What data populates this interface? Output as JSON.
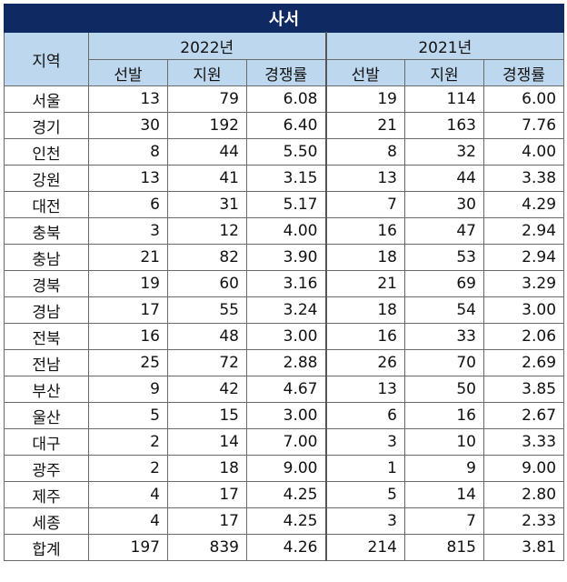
{
  "title": "사서",
  "header": {
    "region": "지역",
    "years": [
      "2022년",
      "2021년"
    ],
    "columns": [
      "선발",
      "지원",
      "경쟁률"
    ]
  },
  "rows": [
    {
      "region": "서울",
      "y2022": [
        "13",
        "79",
        "6.08"
      ],
      "y2021": [
        "19",
        "114",
        "6.00"
      ]
    },
    {
      "region": "경기",
      "y2022": [
        "30",
        "192",
        "6.40"
      ],
      "y2021": [
        "21",
        "163",
        "7.76"
      ]
    },
    {
      "region": "인천",
      "y2022": [
        "8",
        "44",
        "5.50"
      ],
      "y2021": [
        "8",
        "32",
        "4.00"
      ]
    },
    {
      "region": "강원",
      "y2022": [
        "13",
        "41",
        "3.15"
      ],
      "y2021": [
        "13",
        "44",
        "3.38"
      ]
    },
    {
      "region": "대전",
      "y2022": [
        "6",
        "31",
        "5.17"
      ],
      "y2021": [
        "7",
        "30",
        "4.29"
      ]
    },
    {
      "region": "충북",
      "y2022": [
        "3",
        "12",
        "4.00"
      ],
      "y2021": [
        "16",
        "47",
        "2.94"
      ]
    },
    {
      "region": "충남",
      "y2022": [
        "21",
        "82",
        "3.90"
      ],
      "y2021": [
        "18",
        "53",
        "2.94"
      ]
    },
    {
      "region": "경북",
      "y2022": [
        "19",
        "60",
        "3.16"
      ],
      "y2021": [
        "21",
        "69",
        "3.29"
      ]
    },
    {
      "region": "경남",
      "y2022": [
        "17",
        "55",
        "3.24"
      ],
      "y2021": [
        "18",
        "54",
        "3.00"
      ]
    },
    {
      "region": "전북",
      "y2022": [
        "16",
        "48",
        "3.00"
      ],
      "y2021": [
        "16",
        "33",
        "2.06"
      ]
    },
    {
      "region": "전남",
      "y2022": [
        "25",
        "72",
        "2.88"
      ],
      "y2021": [
        "26",
        "70",
        "2.69"
      ]
    },
    {
      "region": "부산",
      "y2022": [
        "9",
        "42",
        "4.67"
      ],
      "y2021": [
        "13",
        "50",
        "3.85"
      ]
    },
    {
      "region": "울산",
      "y2022": [
        "5",
        "15",
        "3.00"
      ],
      "y2021": [
        "6",
        "16",
        "2.67"
      ]
    },
    {
      "region": "대구",
      "y2022": [
        "2",
        "14",
        "7.00"
      ],
      "y2021": [
        "3",
        "10",
        "3.33"
      ]
    },
    {
      "region": "광주",
      "y2022": [
        "2",
        "18",
        "9.00"
      ],
      "y2021": [
        "1",
        "9",
        "9.00"
      ]
    },
    {
      "region": "제주",
      "y2022": [
        "4",
        "17",
        "4.25"
      ],
      "y2021": [
        "5",
        "14",
        "2.80"
      ]
    },
    {
      "region": "세종",
      "y2022": [
        "4",
        "17",
        "4.25"
      ],
      "y2021": [
        "3",
        "7",
        "2.33"
      ]
    },
    {
      "region": "합계",
      "y2022": [
        "197",
        "839",
        "4.26"
      ],
      "y2021": [
        "214",
        "815",
        "3.81"
      ]
    }
  ],
  "colors": {
    "title_bg": "#0f2a63",
    "header_bg": "#bdd7ee",
    "border": "#6a6a6a"
  }
}
